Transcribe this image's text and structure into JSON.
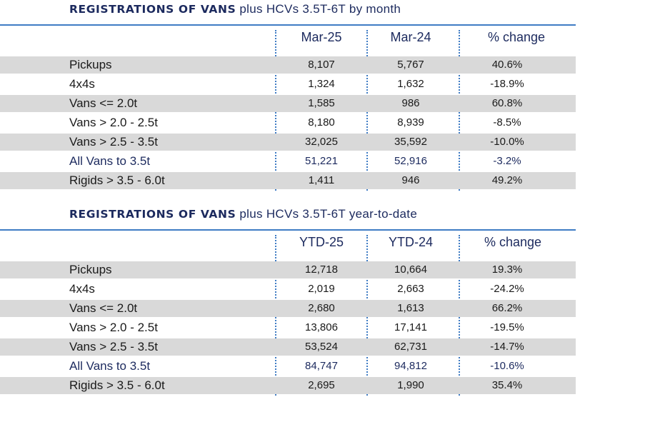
{
  "monthly": {
    "title_bold": "REGISTRATIONS OF VANS",
    "title_rest": "plus HCVs 3.5T-6T by month",
    "headers": [
      "Mar-25",
      "Mar-24",
      "% change"
    ],
    "rows": [
      {
        "label": "Pickups",
        "a": "8,107",
        "b": "5,767",
        "c": "40.6%"
      },
      {
        "label": "4x4s",
        "a": "1,324",
        "b": "1,632",
        "c": "-18.9%"
      },
      {
        "label": "Vans <= 2.0t",
        "a": "1,585",
        "b": "986",
        "c": "60.8%"
      },
      {
        "label": "Vans > 2.0 - 2.5t",
        "a": "8,180",
        "b": "8,939",
        "c": "-8.5%"
      },
      {
        "label": "Vans > 2.5 - 3.5t",
        "a": "32,025",
        "b": "35,592",
        "c": "-10.0%"
      },
      {
        "label": "All Vans to 3.5t",
        "a": "51,221",
        "b": "52,916",
        "c": "-3.2%"
      },
      {
        "label": "Rigids > 3.5 - 6.0t",
        "a": "1,411",
        "b": "946",
        "c": "49.2%"
      }
    ]
  },
  "ytd": {
    "title_bold": "REGISTRATIONS OF VANS",
    "title_rest": "plus HCVs 3.5T-6T year-to-date",
    "headers": [
      "YTD-25",
      "YTD-24",
      "% change"
    ],
    "rows": [
      {
        "label": "Pickups",
        "a": "12,718",
        "b": "10,664",
        "c": "19.3%"
      },
      {
        "label": "4x4s",
        "a": "2,019",
        "b": "2,663",
        "c": "-24.2%"
      },
      {
        "label": "Vans <= 2.0t",
        "a": "2,680",
        "b": "1,613",
        "c": "66.2%"
      },
      {
        "label": "Vans > 2.0 - 2.5t",
        "a": "13,806",
        "b": "17,141",
        "c": "-19.5%"
      },
      {
        "label": "Vans > 2.5 - 3.5t",
        "a": "53,524",
        "b": "62,731",
        "c": "-14.7%"
      },
      {
        "label": "All Vans to 3.5t",
        "a": "84,747",
        "b": "94,812",
        "c": "-10.6%"
      },
      {
        "label": "Rigids > 3.5 - 6.0t",
        "a": "2,695",
        "b": "1,990",
        "c": "35.4%"
      }
    ]
  },
  "colors": {
    "navy": "#1c2a5e",
    "rule_blue": "#3f7cc4",
    "row_shade": "#d9d9d9"
  }
}
